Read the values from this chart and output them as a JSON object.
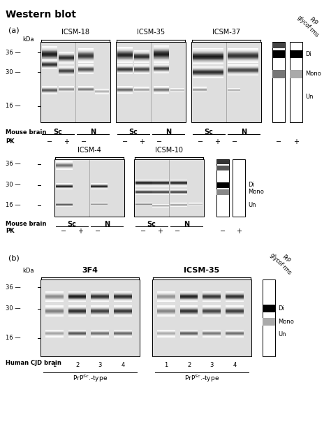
{
  "title": "Western blot",
  "bg_color": "#ffffff",
  "panel_a_label": "(a)",
  "panel_b_label": "(b)",
  "kda_label": "kDa",
  "mouse_brain_label": "Mouse brain",
  "pk_label": "PK",
  "sc_label": "Sc",
  "n_label": "N",
  "minus": "−",
  "plus": "+",
  "di_label": "Di",
  "mono_label": "Mono",
  "un_label": "Un",
  "human_cjd_label": "Human CJD brain",
  "prp_glycoforms_label": "PrP\nglycof·rms",
  "antibody_a1": [
    "ICSM-18",
    "ICSM-35",
    "ICSM-37"
  ],
  "antibody_a2": [
    "ICSM-4",
    "ICSM-10"
  ],
  "antibody_b": [
    "3F4",
    "ICSM-35"
  ],
  "lane_numbers": [
    "1",
    "2",
    "3",
    "4"
  ],
  "prpsc_type": "PrP",
  "figw": 4.74,
  "figh": 6.24,
  "dpi": 100
}
